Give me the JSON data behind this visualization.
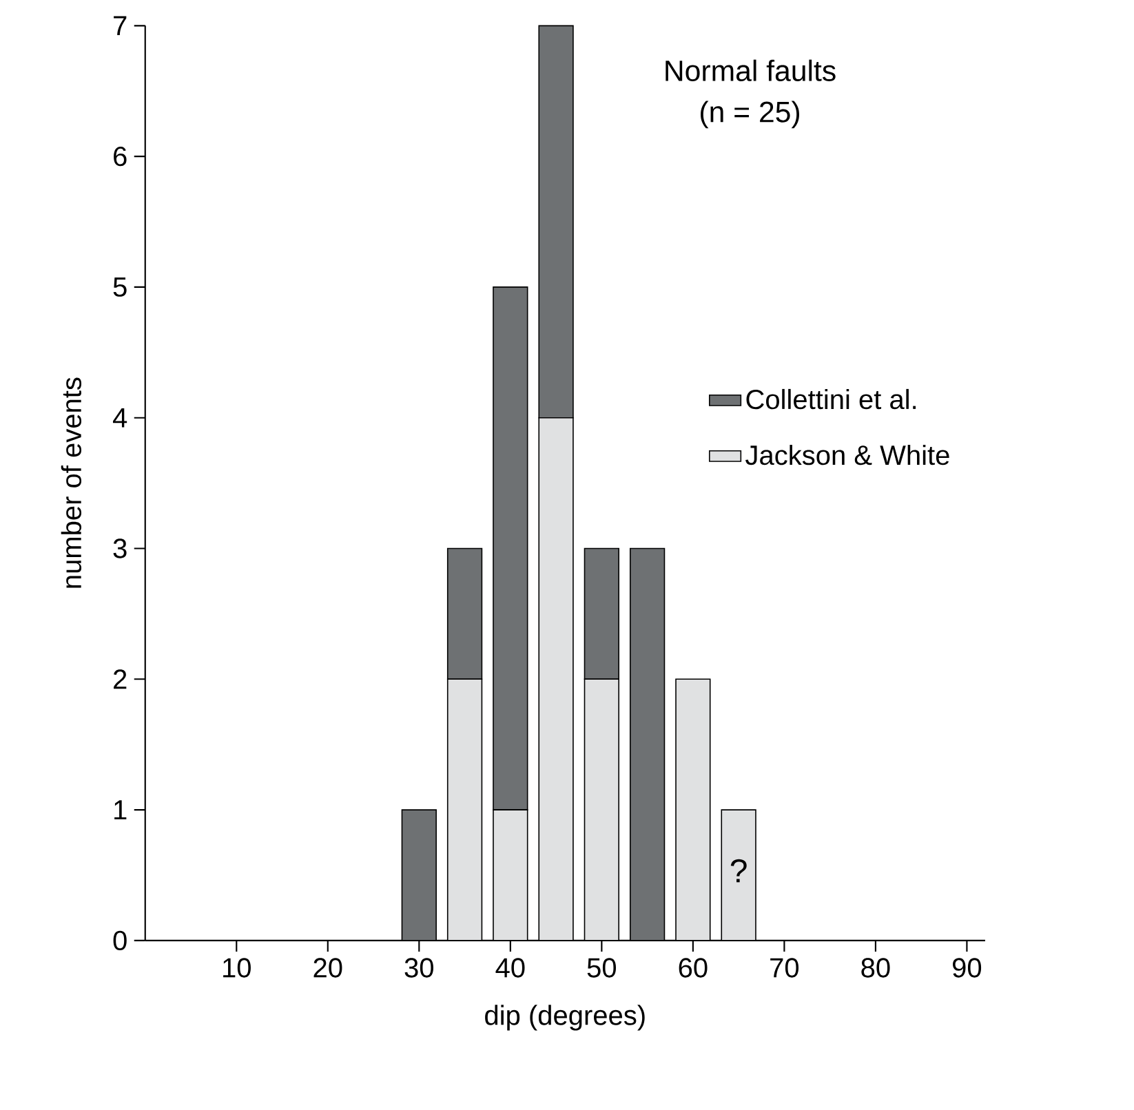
{
  "chart_data": {
    "type": "bar",
    "title": "Normal faults",
    "subtitle": "(n = 25)",
    "xlabel": "dip (degrees)",
    "ylabel": "number of events",
    "x": [
      30,
      35,
      40,
      45,
      50,
      55,
      60,
      65
    ],
    "stacked": true,
    "series": [
      {
        "name": "Jackson & White",
        "color": "#e0e1e2",
        "values": [
          0,
          2,
          1,
          4,
          2,
          0,
          2,
          1
        ]
      },
      {
        "name": "Collettini et al.",
        "color": "#6e7173",
        "values": [
          1,
          1,
          4,
          3,
          1,
          3,
          0,
          0
        ]
      }
    ],
    "xlim": [
      0,
      92
    ],
    "xticks": [
      10,
      20,
      30,
      40,
      50,
      60,
      70,
      80,
      90
    ],
    "ylim": [
      0,
      7
    ],
    "yticks": [
      0,
      1,
      2,
      3,
      4,
      5,
      6,
      7
    ],
    "annotations": [
      "?"
    ],
    "legend": "right",
    "grid": false
  }
}
